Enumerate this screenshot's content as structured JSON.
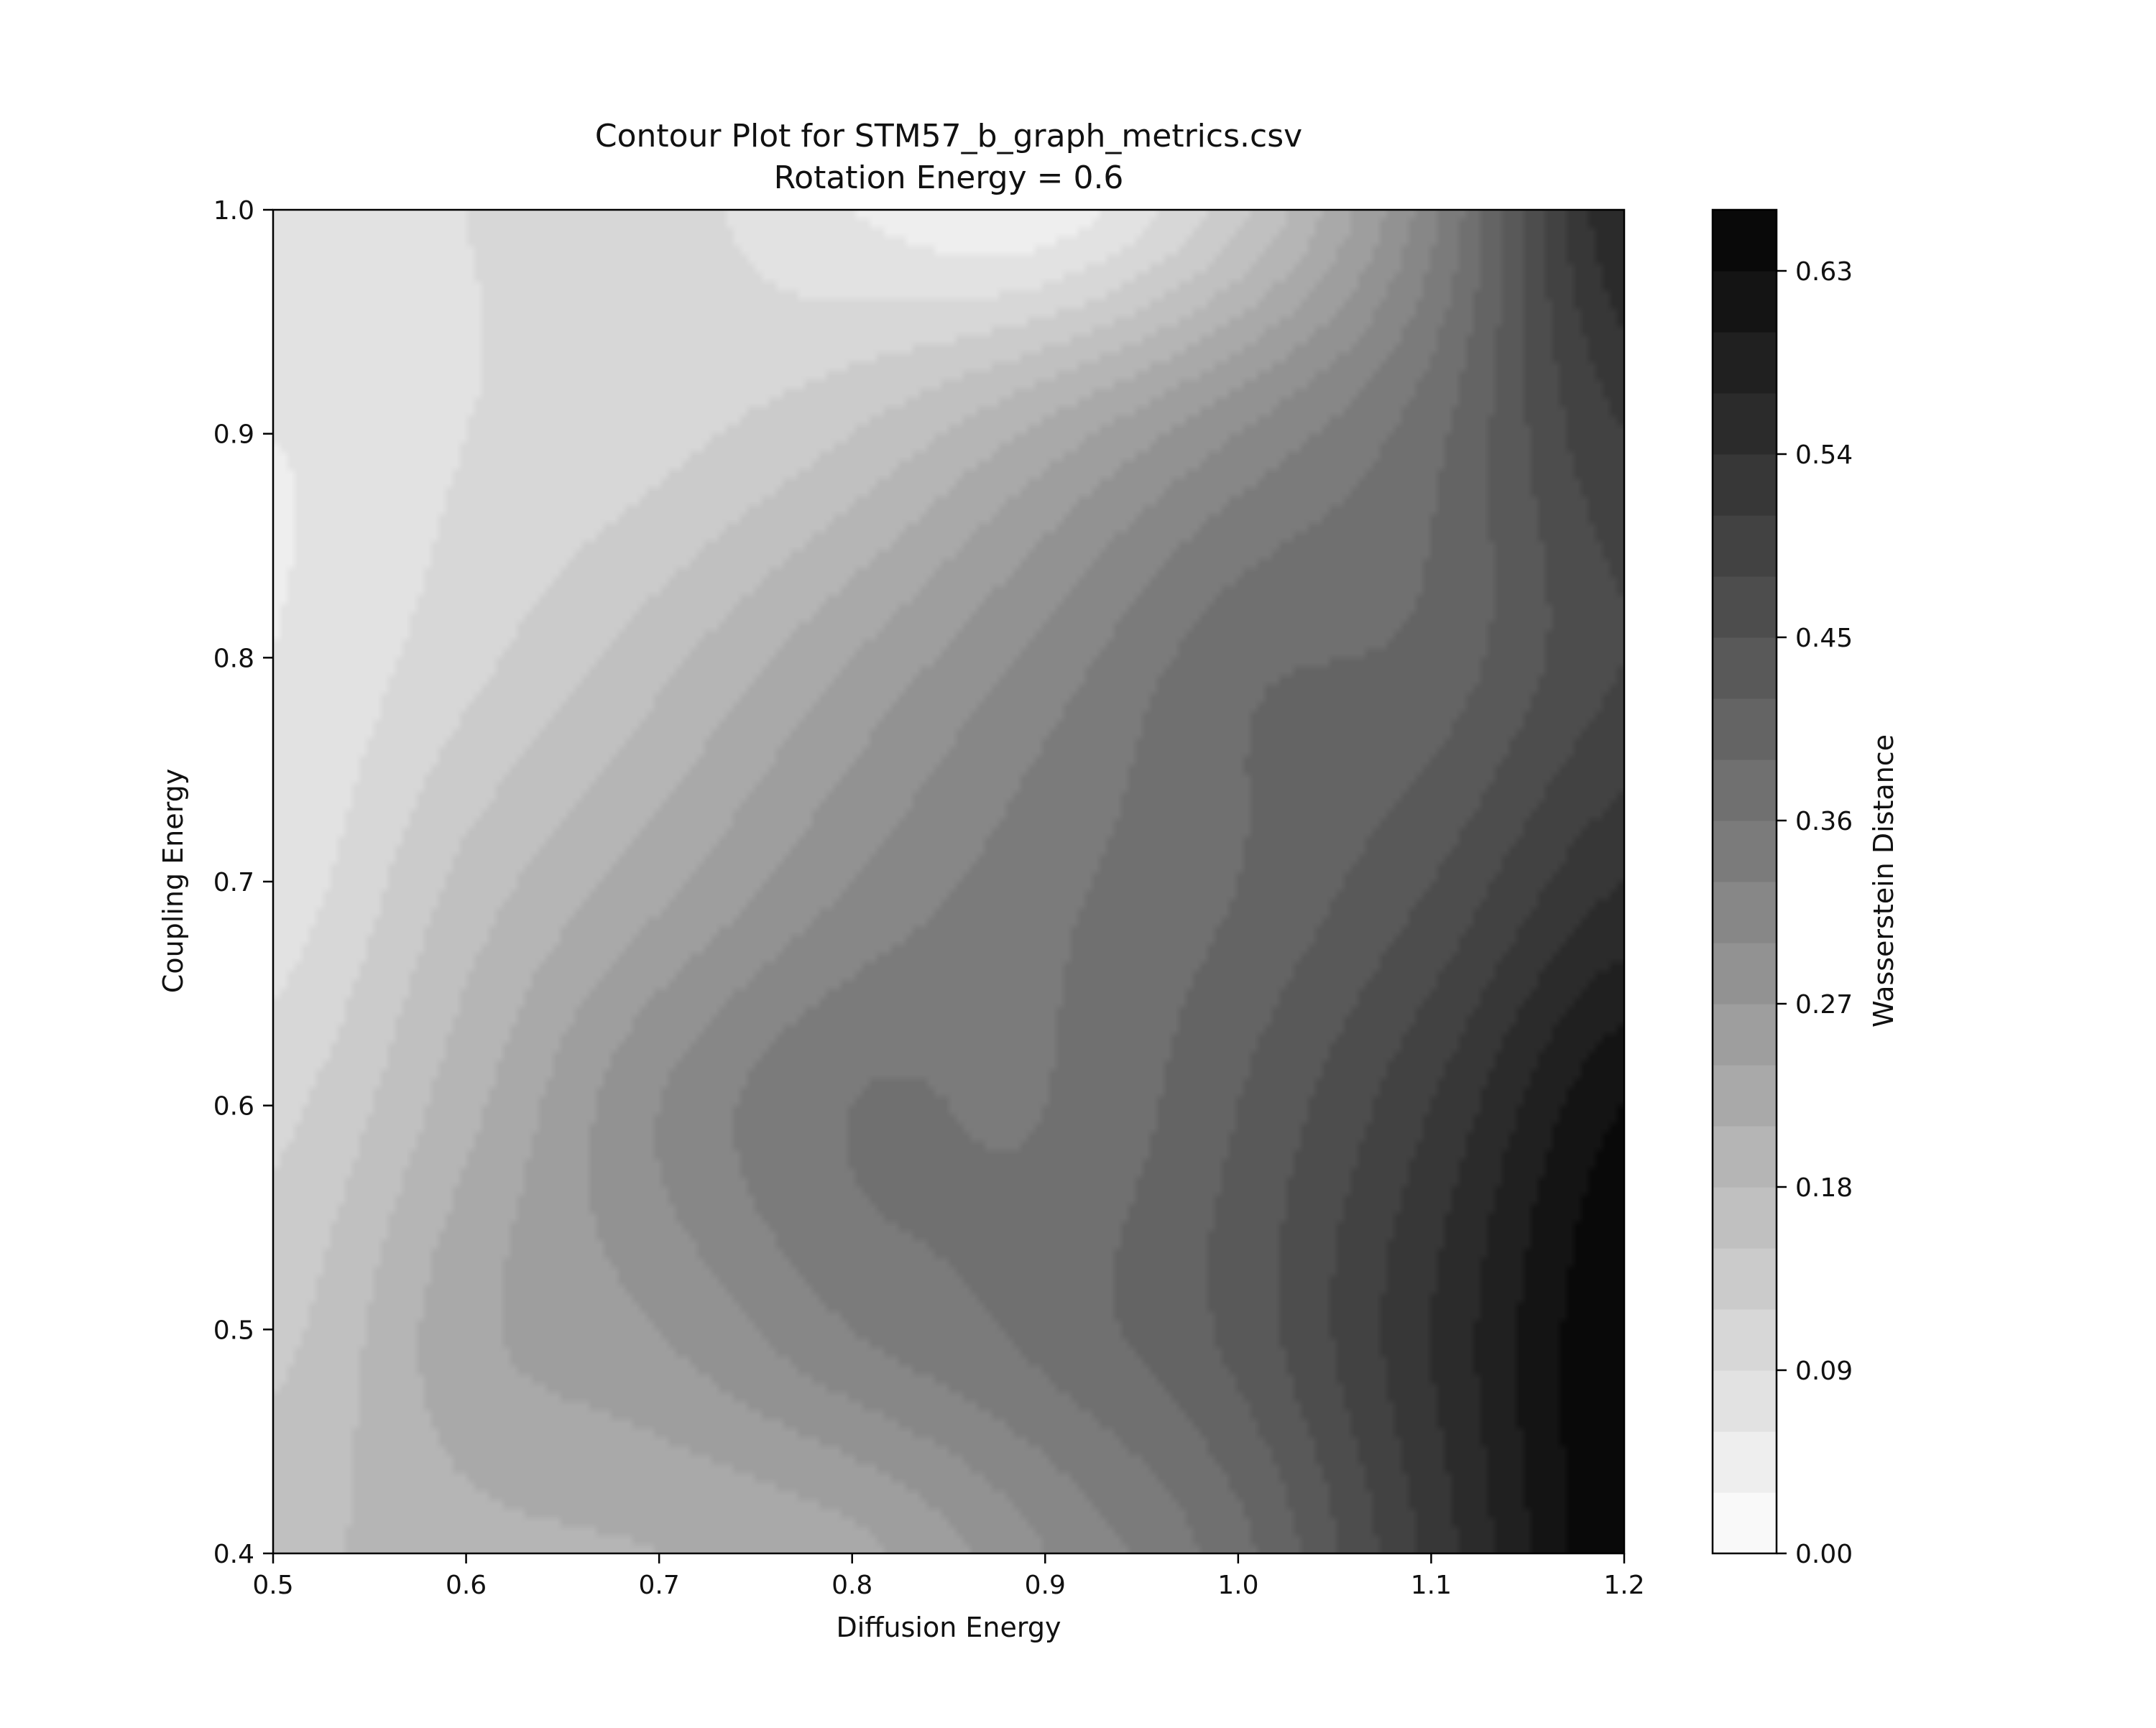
{
  "chart_data": {
    "type": "heatmap",
    "subtype": "filled-contour",
    "title": "Contour Plot for STM57_b_graph_metrics.csv",
    "subtitle": "Rotation Energy = 0.6",
    "xlabel": "Diffusion Energy",
    "ylabel": "Coupling Energy",
    "colorbar_label": "Wasserstein Distance",
    "colormap": "grayscale (white = low, black = high)",
    "xlim": [
      0.5,
      1.2
    ],
    "ylim": [
      0.4,
      1.0
    ],
    "vlim": [
      0.0,
      0.66
    ],
    "x_ticks": [
      "0.5",
      "0.6",
      "0.7",
      "0.8",
      "0.9",
      "1.0",
      "1.1",
      "1.2"
    ],
    "y_ticks": [
      "0.4",
      "0.5",
      "0.6",
      "0.7",
      "0.8",
      "0.9",
      "1.0"
    ],
    "colorbar_ticks": [
      "0.00",
      "0.09",
      "0.18",
      "0.27",
      "0.36",
      "0.45",
      "0.54",
      "0.63"
    ],
    "levels": 22,
    "grid": false,
    "x": [
      0.5,
      0.6,
      0.7,
      0.8,
      0.9,
      1.0,
      1.1,
      1.2
    ],
    "y": [
      0.4,
      0.5,
      0.6,
      0.7,
      0.8,
      0.9,
      1.0
    ],
    "z": [
      [
        0.17,
        0.2,
        0.21,
        0.23,
        0.3,
        0.38,
        0.52,
        0.66
      ],
      [
        0.14,
        0.23,
        0.27,
        0.33,
        0.37,
        0.43,
        0.54,
        0.66
      ],
      [
        0.11,
        0.2,
        0.3,
        0.36,
        0.36,
        0.42,
        0.51,
        0.63
      ],
      [
        0.07,
        0.16,
        0.23,
        0.3,
        0.35,
        0.39,
        0.45,
        0.54
      ],
      [
        0.06,
        0.11,
        0.17,
        0.24,
        0.31,
        0.38,
        0.4,
        0.48
      ],
      [
        0.06,
        0.09,
        0.11,
        0.15,
        0.22,
        0.3,
        0.38,
        0.51
      ],
      [
        0.09,
        0.09,
        0.1,
        0.06,
        0.04,
        0.14,
        0.32,
        0.57
      ]
    ]
  }
}
